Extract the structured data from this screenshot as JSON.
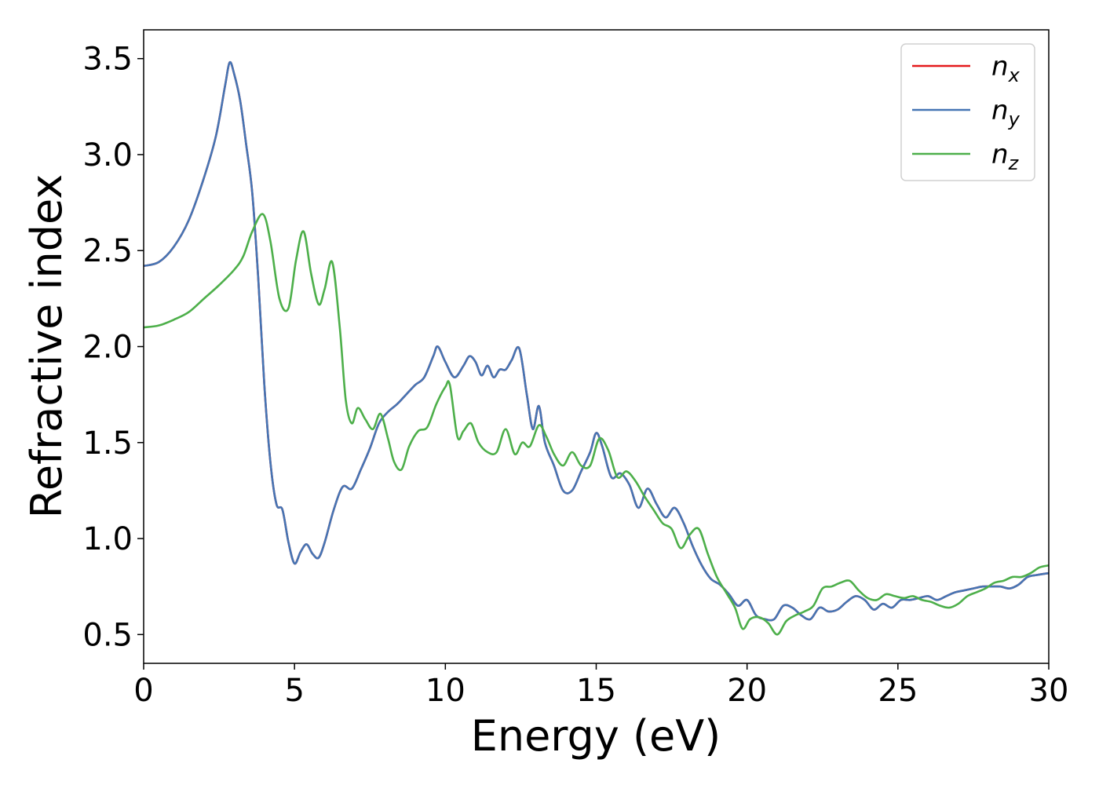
{
  "chart_data": {
    "type": "line",
    "title": "",
    "xlabel": "Energy (eV)",
    "ylabel": "Refractive index",
    "xlim": [
      0,
      30
    ],
    "ylim": [
      0.35,
      3.65
    ],
    "x_ticks": [
      0,
      5,
      10,
      15,
      20,
      25,
      30
    ],
    "x_tick_labels": [
      "0",
      "5",
      "10",
      "15",
      "20",
      "25",
      "30"
    ],
    "y_ticks": [
      0.5,
      1.0,
      1.5,
      2.0,
      2.5,
      3.0,
      3.5
    ],
    "y_tick_labels": [
      "0.5",
      "1.0",
      "1.5",
      "2.0",
      "2.5",
      "3.0",
      "3.5"
    ],
    "grid": false,
    "legend_position": "top-right",
    "series": [
      {
        "name": "n",
        "sub": "x",
        "color": "#e41a1c",
        "x": [
          0,
          0.5,
          1.0,
          1.5,
          2.0,
          2.4,
          2.7,
          2.85,
          3.0,
          3.2,
          3.4,
          3.6,
          3.8,
          4.0,
          4.2,
          4.4,
          4.6,
          4.8,
          5.0,
          5.2,
          5.4,
          5.6,
          5.8,
          6.0,
          6.3,
          6.6,
          6.9,
          7.2,
          7.5,
          7.8,
          8.1,
          8.4,
          8.7,
          9.0,
          9.3,
          9.6,
          9.75,
          10.0,
          10.3,
          10.6,
          10.8,
          11.0,
          11.2,
          11.4,
          11.6,
          11.8,
          12.0,
          12.2,
          12.45,
          12.7,
          12.9,
          13.1,
          13.3,
          13.6,
          13.9,
          14.2,
          14.5,
          14.8,
          15.0,
          15.2,
          15.5,
          15.8,
          16.1,
          16.4,
          16.7,
          17.0,
          17.3,
          17.6,
          17.9,
          18.2,
          18.5,
          18.8,
          19.1,
          19.4,
          19.7,
          20.0,
          20.3,
          20.6,
          20.9,
          21.2,
          21.5,
          21.8,
          22.1,
          22.4,
          22.7,
          23.0,
          23.3,
          23.6,
          23.9,
          24.2,
          24.5,
          24.8,
          25.1,
          25.4,
          25.7,
          26.0,
          26.3,
          26.6,
          26.9,
          27.2,
          27.5,
          27.8,
          28.1,
          28.4,
          28.7,
          29.0,
          29.3,
          29.6,
          30.0
        ],
        "y": [
          2.42,
          2.44,
          2.52,
          2.66,
          2.88,
          3.1,
          3.36,
          3.48,
          3.42,
          3.28,
          3.05,
          2.8,
          2.35,
          1.8,
          1.4,
          1.18,
          1.15,
          0.98,
          0.87,
          0.93,
          0.97,
          0.92,
          0.9,
          0.98,
          1.15,
          1.27,
          1.26,
          1.36,
          1.47,
          1.6,
          1.66,
          1.7,
          1.75,
          1.8,
          1.84,
          1.95,
          2.0,
          1.92,
          1.84,
          1.9,
          1.95,
          1.92,
          1.85,
          1.9,
          1.84,
          1.88,
          1.88,
          1.93,
          1.99,
          1.75,
          1.57,
          1.69,
          1.5,
          1.38,
          1.25,
          1.25,
          1.35,
          1.45,
          1.55,
          1.48,
          1.32,
          1.34,
          1.28,
          1.16,
          1.26,
          1.18,
          1.11,
          1.16,
          1.08,
          0.96,
          0.86,
          0.79,
          0.76,
          0.71,
          0.65,
          0.68,
          0.6,
          0.58,
          0.58,
          0.65,
          0.64,
          0.6,
          0.58,
          0.64,
          0.62,
          0.63,
          0.67,
          0.7,
          0.68,
          0.63,
          0.66,
          0.64,
          0.68,
          0.68,
          0.69,
          0.7,
          0.68,
          0.7,
          0.72,
          0.73,
          0.74,
          0.75,
          0.75,
          0.75,
          0.74,
          0.76,
          0.8,
          0.81,
          0.82
        ]
      },
      {
        "name": "n",
        "sub": "y",
        "color": "#4575b4",
        "x": [
          0,
          0.5,
          1.0,
          1.5,
          2.0,
          2.4,
          2.7,
          2.85,
          3.0,
          3.2,
          3.4,
          3.6,
          3.8,
          4.0,
          4.2,
          4.4,
          4.6,
          4.8,
          5.0,
          5.2,
          5.4,
          5.6,
          5.8,
          6.0,
          6.3,
          6.6,
          6.9,
          7.2,
          7.5,
          7.8,
          8.1,
          8.4,
          8.7,
          9.0,
          9.3,
          9.6,
          9.75,
          10.0,
          10.3,
          10.6,
          10.8,
          11.0,
          11.2,
          11.4,
          11.6,
          11.8,
          12.0,
          12.2,
          12.45,
          12.7,
          12.9,
          13.1,
          13.3,
          13.6,
          13.9,
          14.2,
          14.5,
          14.8,
          15.0,
          15.2,
          15.5,
          15.8,
          16.1,
          16.4,
          16.7,
          17.0,
          17.3,
          17.6,
          17.9,
          18.2,
          18.5,
          18.8,
          19.1,
          19.4,
          19.7,
          20.0,
          20.3,
          20.6,
          20.9,
          21.2,
          21.5,
          21.8,
          22.1,
          22.4,
          22.7,
          23.0,
          23.3,
          23.6,
          23.9,
          24.2,
          24.5,
          24.8,
          25.1,
          25.4,
          25.7,
          26.0,
          26.3,
          26.6,
          26.9,
          27.2,
          27.5,
          27.8,
          28.1,
          28.4,
          28.7,
          29.0,
          29.3,
          29.6,
          30.0
        ],
        "y": [
          2.42,
          2.44,
          2.52,
          2.66,
          2.88,
          3.1,
          3.36,
          3.48,
          3.42,
          3.28,
          3.05,
          2.8,
          2.35,
          1.8,
          1.4,
          1.18,
          1.15,
          0.98,
          0.87,
          0.93,
          0.97,
          0.92,
          0.9,
          0.98,
          1.15,
          1.27,
          1.26,
          1.36,
          1.47,
          1.6,
          1.66,
          1.7,
          1.75,
          1.8,
          1.84,
          1.95,
          2.0,
          1.92,
          1.84,
          1.9,
          1.95,
          1.92,
          1.85,
          1.9,
          1.84,
          1.88,
          1.88,
          1.93,
          1.99,
          1.75,
          1.57,
          1.69,
          1.5,
          1.38,
          1.25,
          1.25,
          1.35,
          1.45,
          1.55,
          1.48,
          1.32,
          1.34,
          1.28,
          1.16,
          1.26,
          1.18,
          1.11,
          1.16,
          1.08,
          0.96,
          0.86,
          0.79,
          0.76,
          0.71,
          0.65,
          0.68,
          0.6,
          0.58,
          0.58,
          0.65,
          0.64,
          0.6,
          0.58,
          0.64,
          0.62,
          0.63,
          0.67,
          0.7,
          0.68,
          0.63,
          0.66,
          0.64,
          0.68,
          0.68,
          0.69,
          0.7,
          0.68,
          0.7,
          0.72,
          0.73,
          0.74,
          0.75,
          0.75,
          0.75,
          0.74,
          0.76,
          0.8,
          0.81,
          0.82
        ]
      },
      {
        "name": "n",
        "sub": "z",
        "color": "#4daf4a",
        "x": [
          0,
          0.5,
          1.0,
          1.5,
          2.0,
          2.5,
          3.0,
          3.3,
          3.6,
          3.95,
          4.2,
          4.5,
          4.8,
          5.05,
          5.3,
          5.55,
          5.8,
          6.0,
          6.25,
          6.5,
          6.7,
          6.9,
          7.1,
          7.35,
          7.6,
          7.85,
          8.1,
          8.3,
          8.55,
          8.8,
          9.1,
          9.4,
          9.7,
          10.0,
          10.15,
          10.4,
          10.6,
          10.85,
          11.1,
          11.4,
          11.7,
          12.0,
          12.3,
          12.55,
          12.8,
          13.1,
          13.35,
          13.6,
          13.9,
          14.2,
          14.5,
          14.8,
          15.1,
          15.4,
          15.7,
          16.0,
          16.3,
          16.6,
          16.9,
          17.2,
          17.5,
          17.8,
          18.1,
          18.4,
          18.7,
          19.0,
          19.3,
          19.6,
          19.85,
          20.1,
          20.4,
          20.7,
          21.0,
          21.3,
          21.6,
          21.9,
          22.2,
          22.5,
          22.8,
          23.1,
          23.4,
          23.7,
          24.0,
          24.3,
          24.6,
          24.9,
          25.2,
          25.5,
          25.8,
          26.1,
          26.4,
          26.7,
          27.0,
          27.3,
          27.6,
          27.9,
          28.2,
          28.5,
          28.8,
          29.1,
          29.4,
          29.7,
          30.0
        ],
        "y": [
          2.1,
          2.11,
          2.14,
          2.18,
          2.25,
          2.32,
          2.4,
          2.47,
          2.6,
          2.69,
          2.55,
          2.25,
          2.2,
          2.45,
          2.6,
          2.38,
          2.22,
          2.3,
          2.44,
          2.1,
          1.72,
          1.6,
          1.68,
          1.62,
          1.57,
          1.65,
          1.52,
          1.4,
          1.36,
          1.48,
          1.56,
          1.58,
          1.7,
          1.79,
          1.8,
          1.53,
          1.56,
          1.6,
          1.5,
          1.45,
          1.45,
          1.57,
          1.44,
          1.5,
          1.48,
          1.59,
          1.53,
          1.44,
          1.38,
          1.45,
          1.38,
          1.38,
          1.52,
          1.46,
          1.32,
          1.35,
          1.3,
          1.22,
          1.15,
          1.08,
          1.05,
          0.95,
          1.02,
          1.05,
          0.92,
          0.8,
          0.72,
          0.64,
          0.53,
          0.58,
          0.59,
          0.56,
          0.5,
          0.57,
          0.6,
          0.62,
          0.65,
          0.74,
          0.75,
          0.77,
          0.78,
          0.73,
          0.69,
          0.68,
          0.71,
          0.7,
          0.69,
          0.7,
          0.68,
          0.67,
          0.65,
          0.64,
          0.66,
          0.7,
          0.72,
          0.74,
          0.77,
          0.78,
          0.8,
          0.8,
          0.82,
          0.85,
          0.86
        ]
      }
    ]
  }
}
